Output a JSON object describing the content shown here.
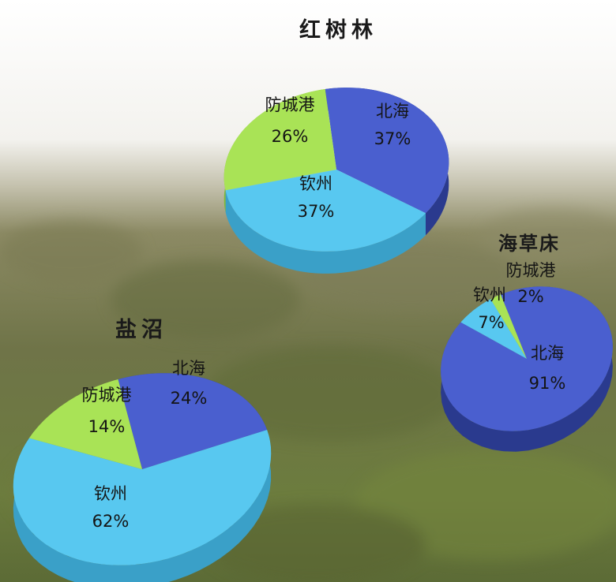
{
  "chart_data": [
    {
      "type": "pie",
      "title": "红树林",
      "categories": [
        "北海",
        "钦州",
        "防城港"
      ],
      "values": [
        37,
        37,
        26
      ],
      "labels": [
        "37%",
        "37%",
        "26%"
      ]
    },
    {
      "type": "pie",
      "title": "海草床",
      "categories": [
        "北海",
        "钦州",
        "防城港"
      ],
      "values": [
        91,
        7,
        2
      ],
      "labels": [
        "91%",
        "7%",
        "2%"
      ]
    },
    {
      "type": "pie",
      "title": "盐沼",
      "categories": [
        "北海",
        "钦州",
        "防城港"
      ],
      "values": [
        24,
        62,
        14
      ],
      "labels": [
        "24%",
        "62%",
        "14%"
      ]
    }
  ],
  "colors": {
    "北海": "#4a5fcf",
    "钦州": "#58c8f0",
    "防城港": "#a9e356"
  }
}
